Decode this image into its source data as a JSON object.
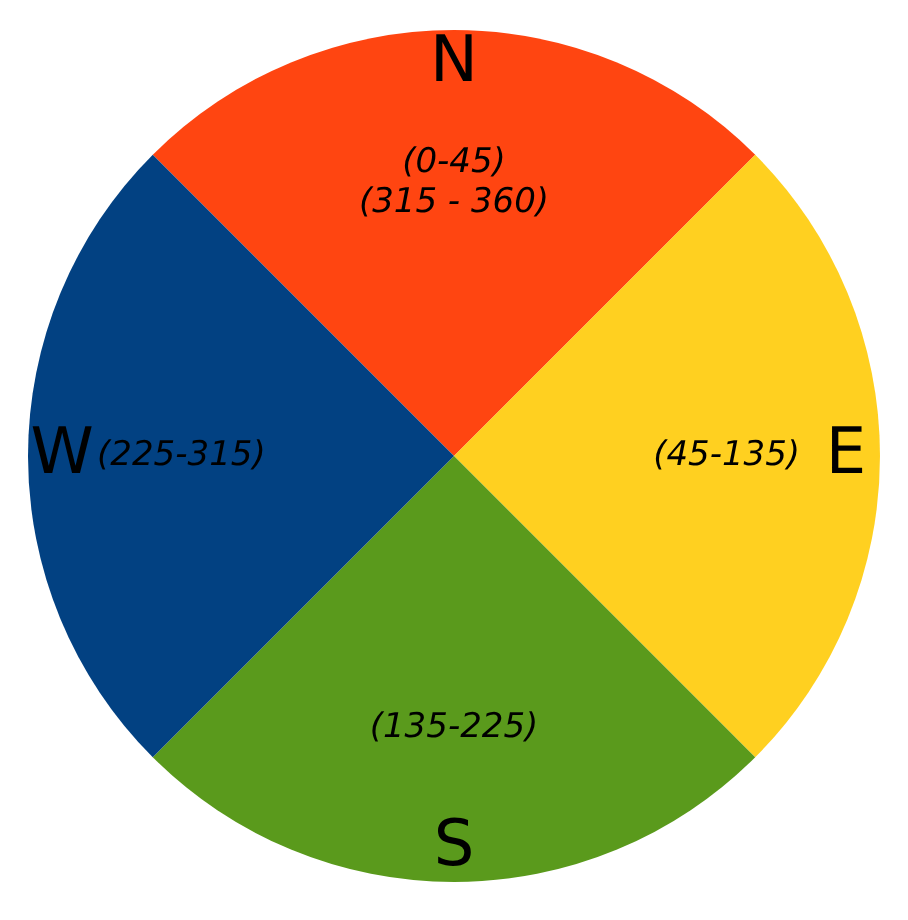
{
  "chart_data": {
    "type": "pie",
    "categories": [
      "N",
      "E",
      "S",
      "W"
    ],
    "values": [
      25,
      25,
      25,
      25
    ],
    "colors": [
      "#ff4511",
      "#ffd020",
      "#5a9a1c",
      "#024182"
    ],
    "annotations": [
      "(0-45)\n(315 - 360)",
      "(45-135)",
      "(135-225)",
      "(225-315)"
    ],
    "legend": false
  }
}
